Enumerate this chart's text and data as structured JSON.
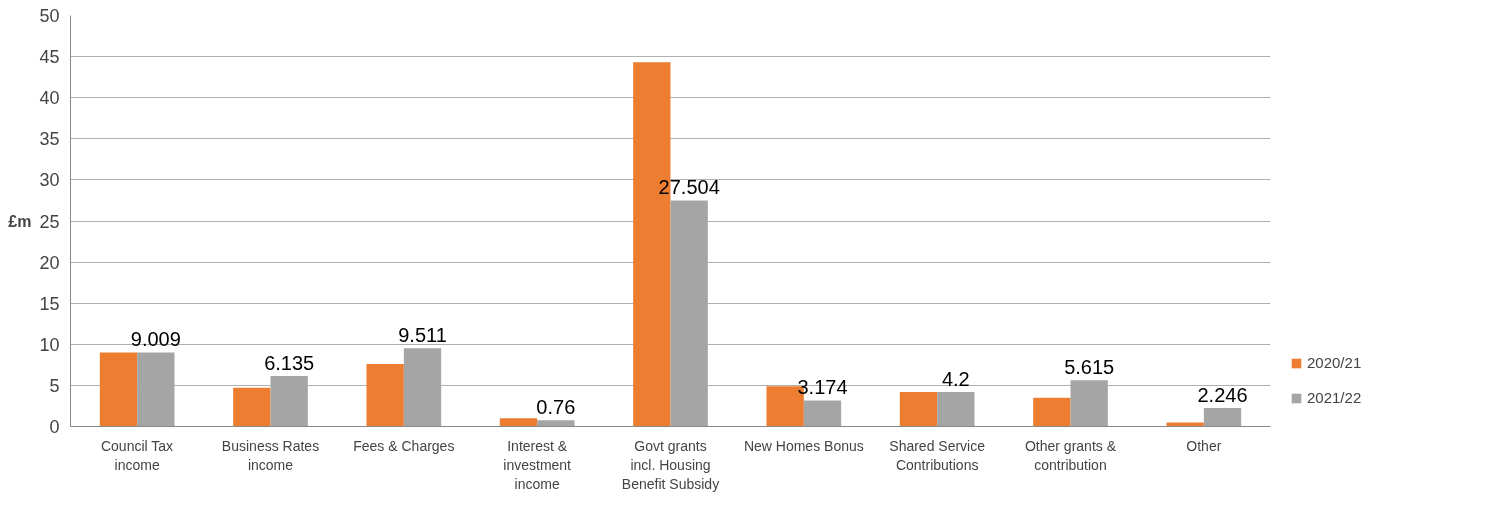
{
  "chart_data": {
    "type": "bar",
    "ylabel": "£m",
    "categories": [
      "Council Tax income",
      "Business Rates income",
      "Fees & Charges",
      "Interest & investment income",
      "Govt grants incl. Housing Benefit Subsidy",
      "New Homes Bonus",
      "Shared Service Contributions",
      "Other grants & contribution",
      "Other"
    ],
    "series": [
      {
        "name": "2020/21",
        "color": "#ed7d31",
        "values": [
          9.0,
          4.7,
          7.6,
          1.0,
          44.3,
          4.9,
          4.2,
          3.5,
          0.5
        ]
      },
      {
        "name": "2021/22",
        "color": "#a5a5a5",
        "values": [
          9.009,
          6.135,
          9.511,
          0.76,
          27.504,
          3.174,
          4.2,
          5.615,
          2.246
        ],
        "value_labels": [
          "9.009",
          "6.135",
          "9.511",
          "0.76",
          "27.504",
          "3.174",
          "4.2",
          "5.615",
          "2.246"
        ]
      }
    ],
    "ylim": [
      0,
      50
    ],
    "yticks": [
      0,
      5,
      10,
      15,
      20,
      25,
      30,
      35,
      40,
      45,
      50
    ],
    "grid": "y",
    "legend": "right"
  }
}
